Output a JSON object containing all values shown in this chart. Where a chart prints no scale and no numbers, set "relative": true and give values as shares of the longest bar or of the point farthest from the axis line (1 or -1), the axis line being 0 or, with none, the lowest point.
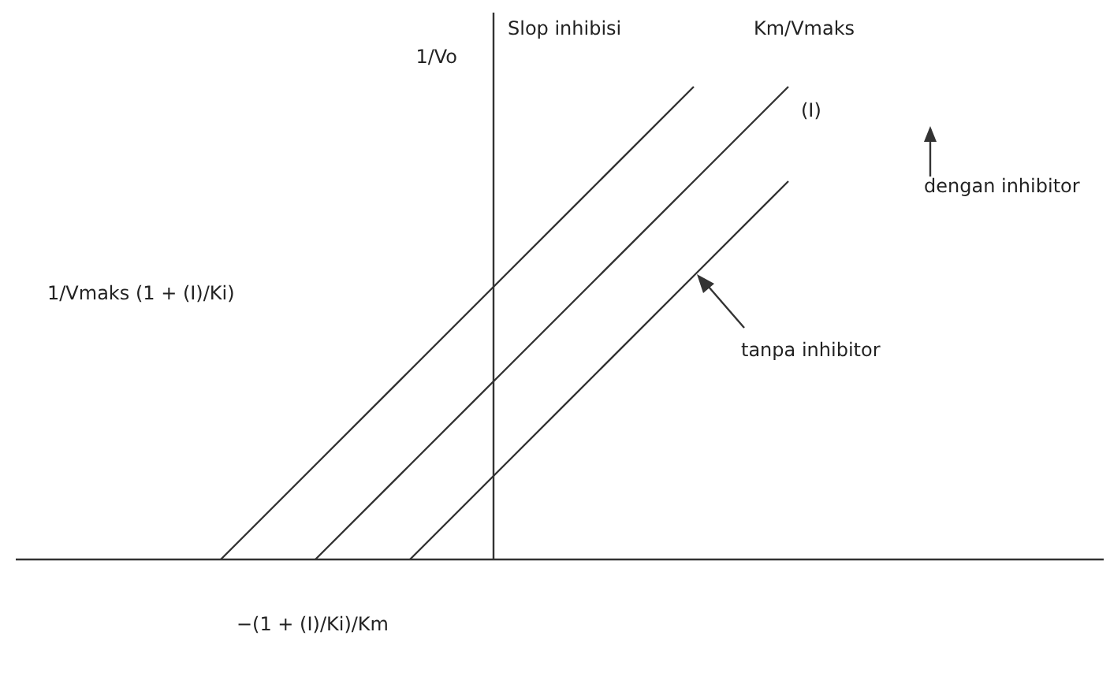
{
  "chart_data": {
    "type": "line",
    "relative": true,
    "ylabel": "1/Vo",
    "categories": [
      null,
      null,
      null,
      null,
      null,
      null,
      null,
      null,
      null,
      null,
      null,
      null
    ],
    "series": [
      {
        "color": "#333333",
        "values": [
          null,
          null,
          0,
          0.2,
          0.4,
          0.6,
          0.8,
          1,
          null,
          null,
          null,
          null
        ]
      },
      {
        "color": "#333333",
        "values": [
          null,
          null,
          null,
          0,
          0.2,
          0.4,
          0.6,
          0.8,
          1,
          null,
          null,
          null
        ]
      },
      {
        "color": "#333333",
        "values": [
          null,
          null,
          null,
          null,
          0,
          0.2,
          0.4,
          0.6,
          0.8,
          null,
          null,
          null
        ]
      }
    ],
    "annotations": [
      "Slop inhibisi",
      "Km/Vmaks",
      "(I)",
      "dengan inhibitor",
      "tanpa inhibitor",
      "1/Vmaks (1 + (I)/Ki)",
      "−(1 + (I)/Ki)/Km"
    ]
  }
}
